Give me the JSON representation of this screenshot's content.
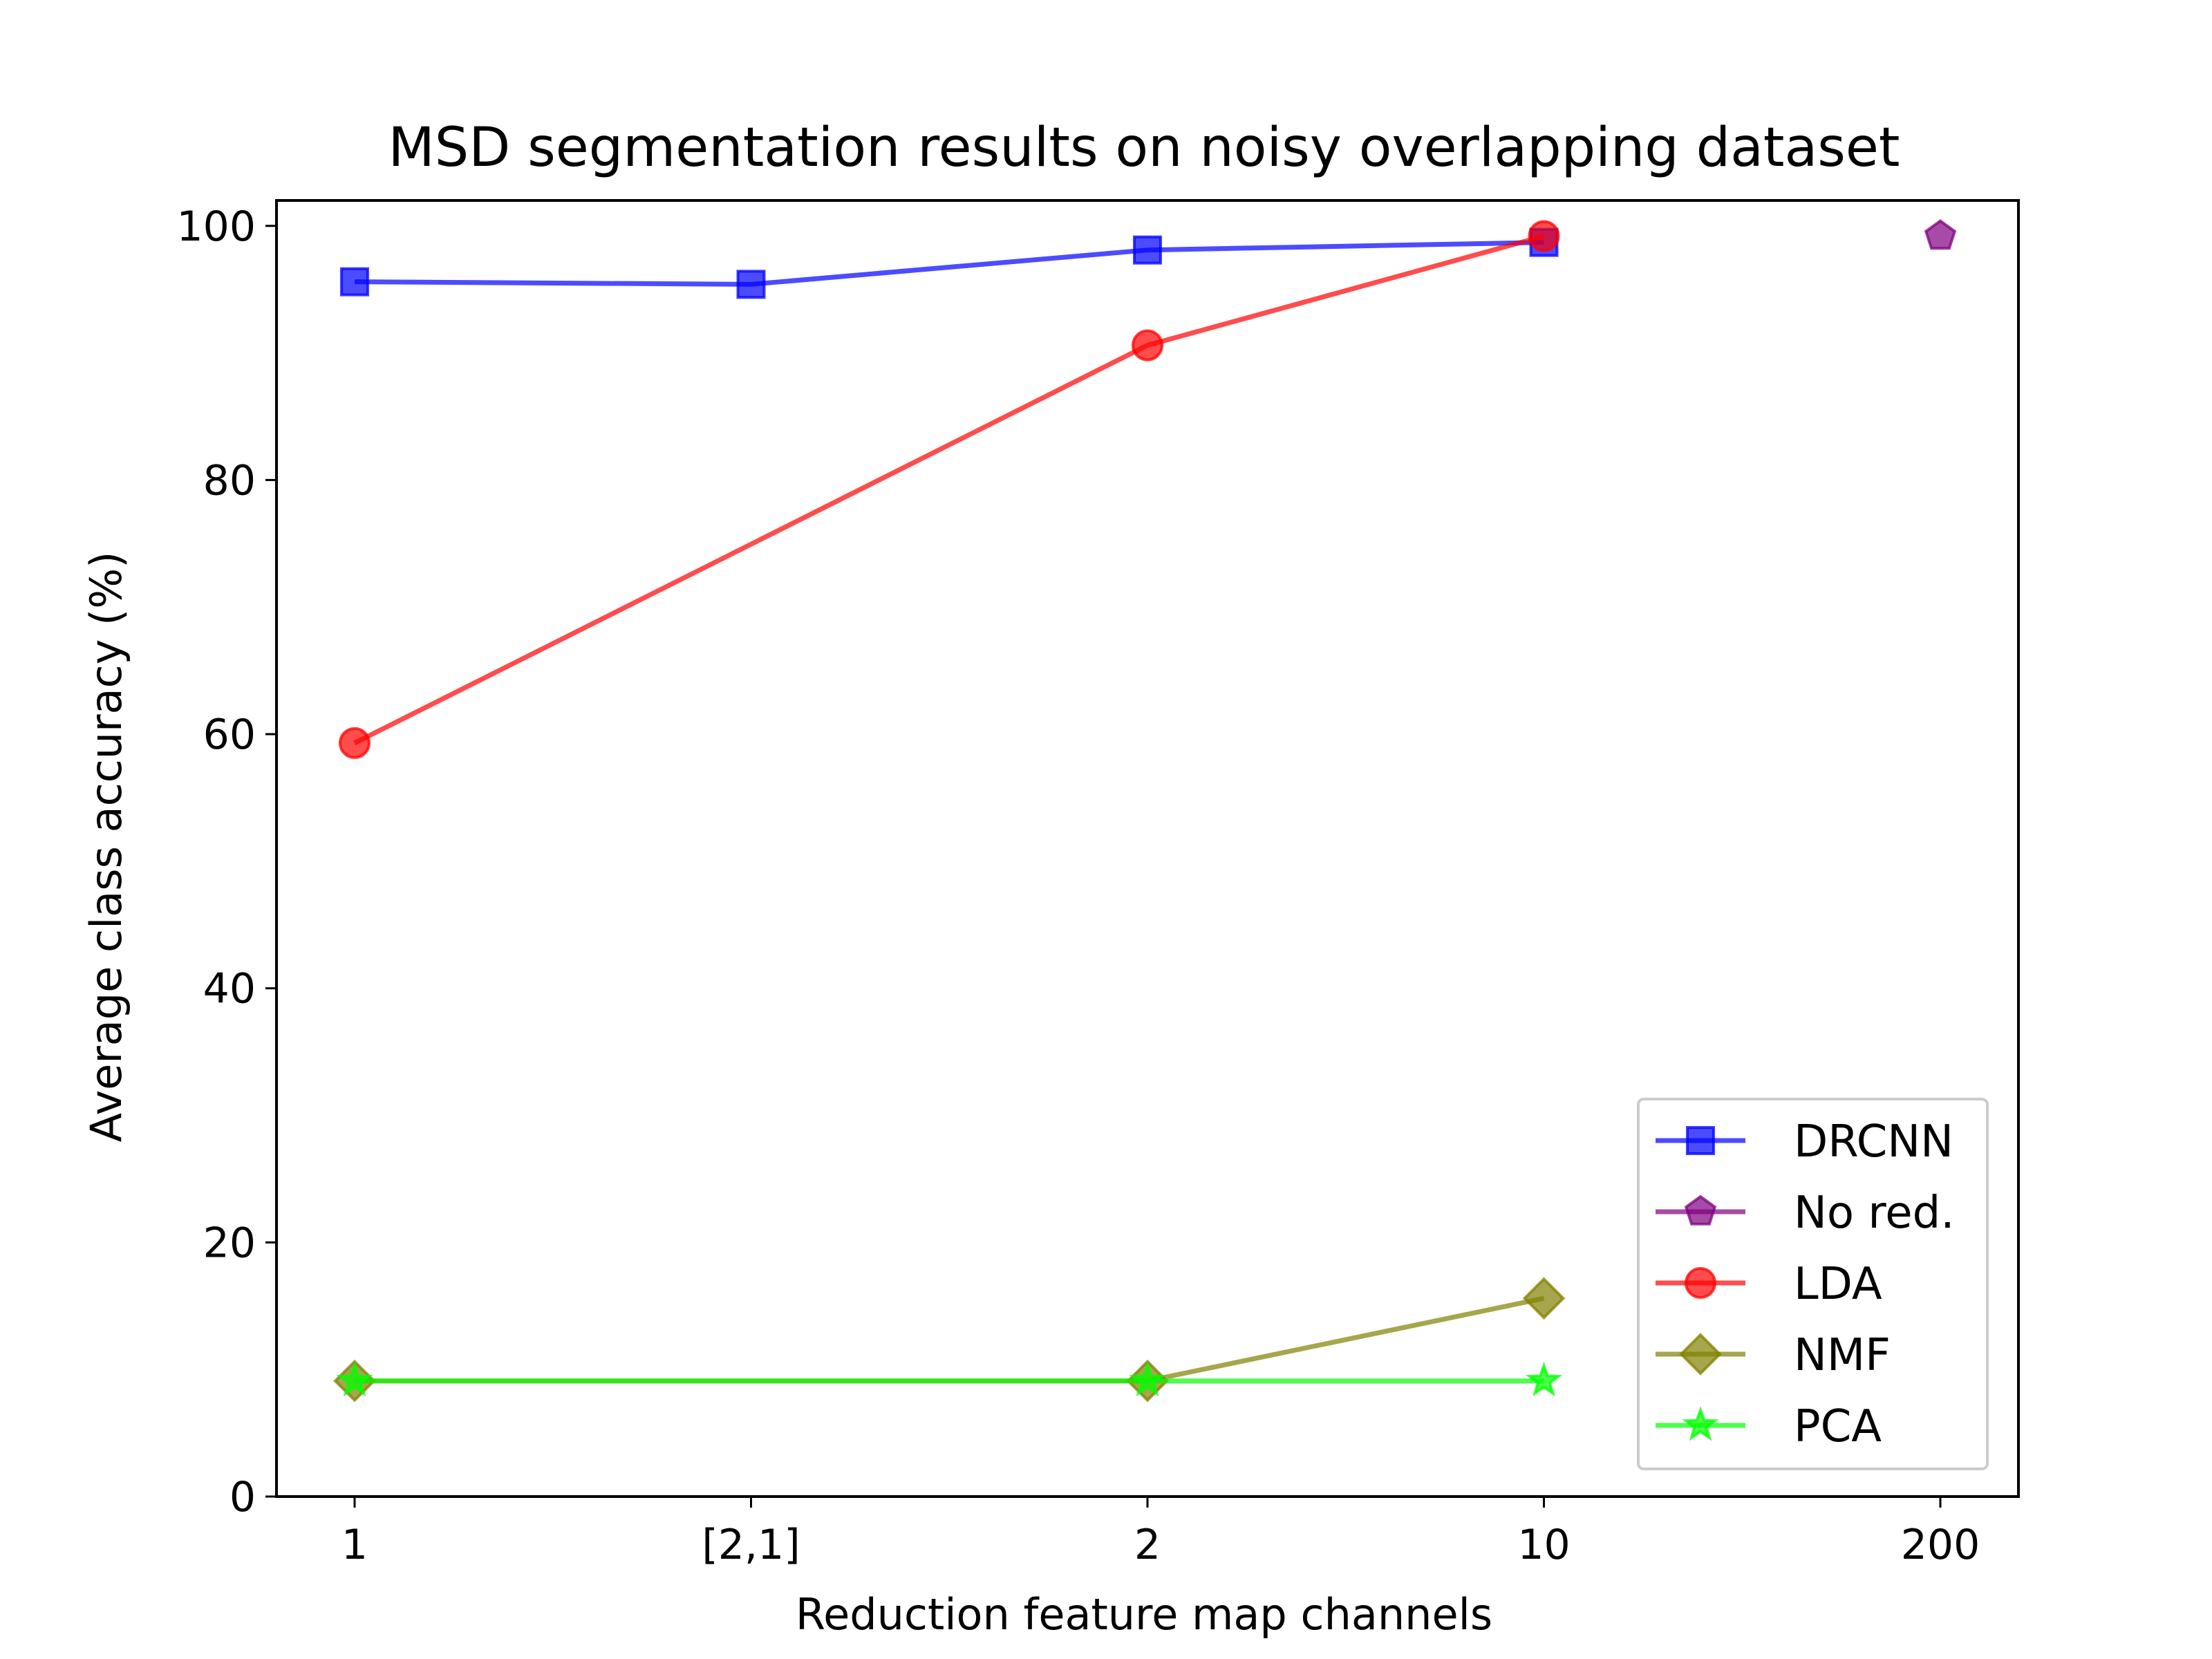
{
  "chart_data": {
    "type": "line",
    "title": "MSD segmentation results on noisy overlapping dataset",
    "xlabel": "Reduction feature map channels",
    "ylabel": "Average class accuracy (%)",
    "categories": [
      "1",
      "[2,1]",
      "2",
      "10",
      "200"
    ],
    "ylim": [
      0,
      102
    ],
    "yticks": [
      0,
      20,
      40,
      60,
      80,
      100
    ],
    "grid": false,
    "legend_position": "lower-right",
    "series": [
      {
        "name": "DRCNN",
        "color": "#0000ff",
        "marker": "square",
        "points": [
          {
            "x": "1",
            "y": 95.6
          },
          {
            "x": "[2,1]",
            "y": 95.4
          },
          {
            "x": "2",
            "y": 98.1
          },
          {
            "x": "10",
            "y": 98.7
          }
        ]
      },
      {
        "name": "No red.",
        "color": "#800080",
        "marker": "pentagon",
        "points": [
          {
            "x": "200",
            "y": 99.2
          }
        ]
      },
      {
        "name": "LDA",
        "color": "#ff0000",
        "marker": "circle",
        "points": [
          {
            "x": "1",
            "y": 59.3
          },
          {
            "x": "2",
            "y": 90.6
          },
          {
            "x": "10",
            "y": 99.2
          }
        ]
      },
      {
        "name": "NMF",
        "color": "#808000",
        "marker": "diamond",
        "points": [
          {
            "x": "1",
            "y": 9.1
          },
          {
            "x": "2",
            "y": 9.1
          },
          {
            "x": "10",
            "y": 15.6
          }
        ]
      },
      {
        "name": "PCA",
        "color": "#00ff00",
        "marker": "star",
        "points": [
          {
            "x": "1",
            "y": 9.1
          },
          {
            "x": "2",
            "y": 9.1
          },
          {
            "x": "10",
            "y": 9.1
          }
        ]
      }
    ]
  }
}
